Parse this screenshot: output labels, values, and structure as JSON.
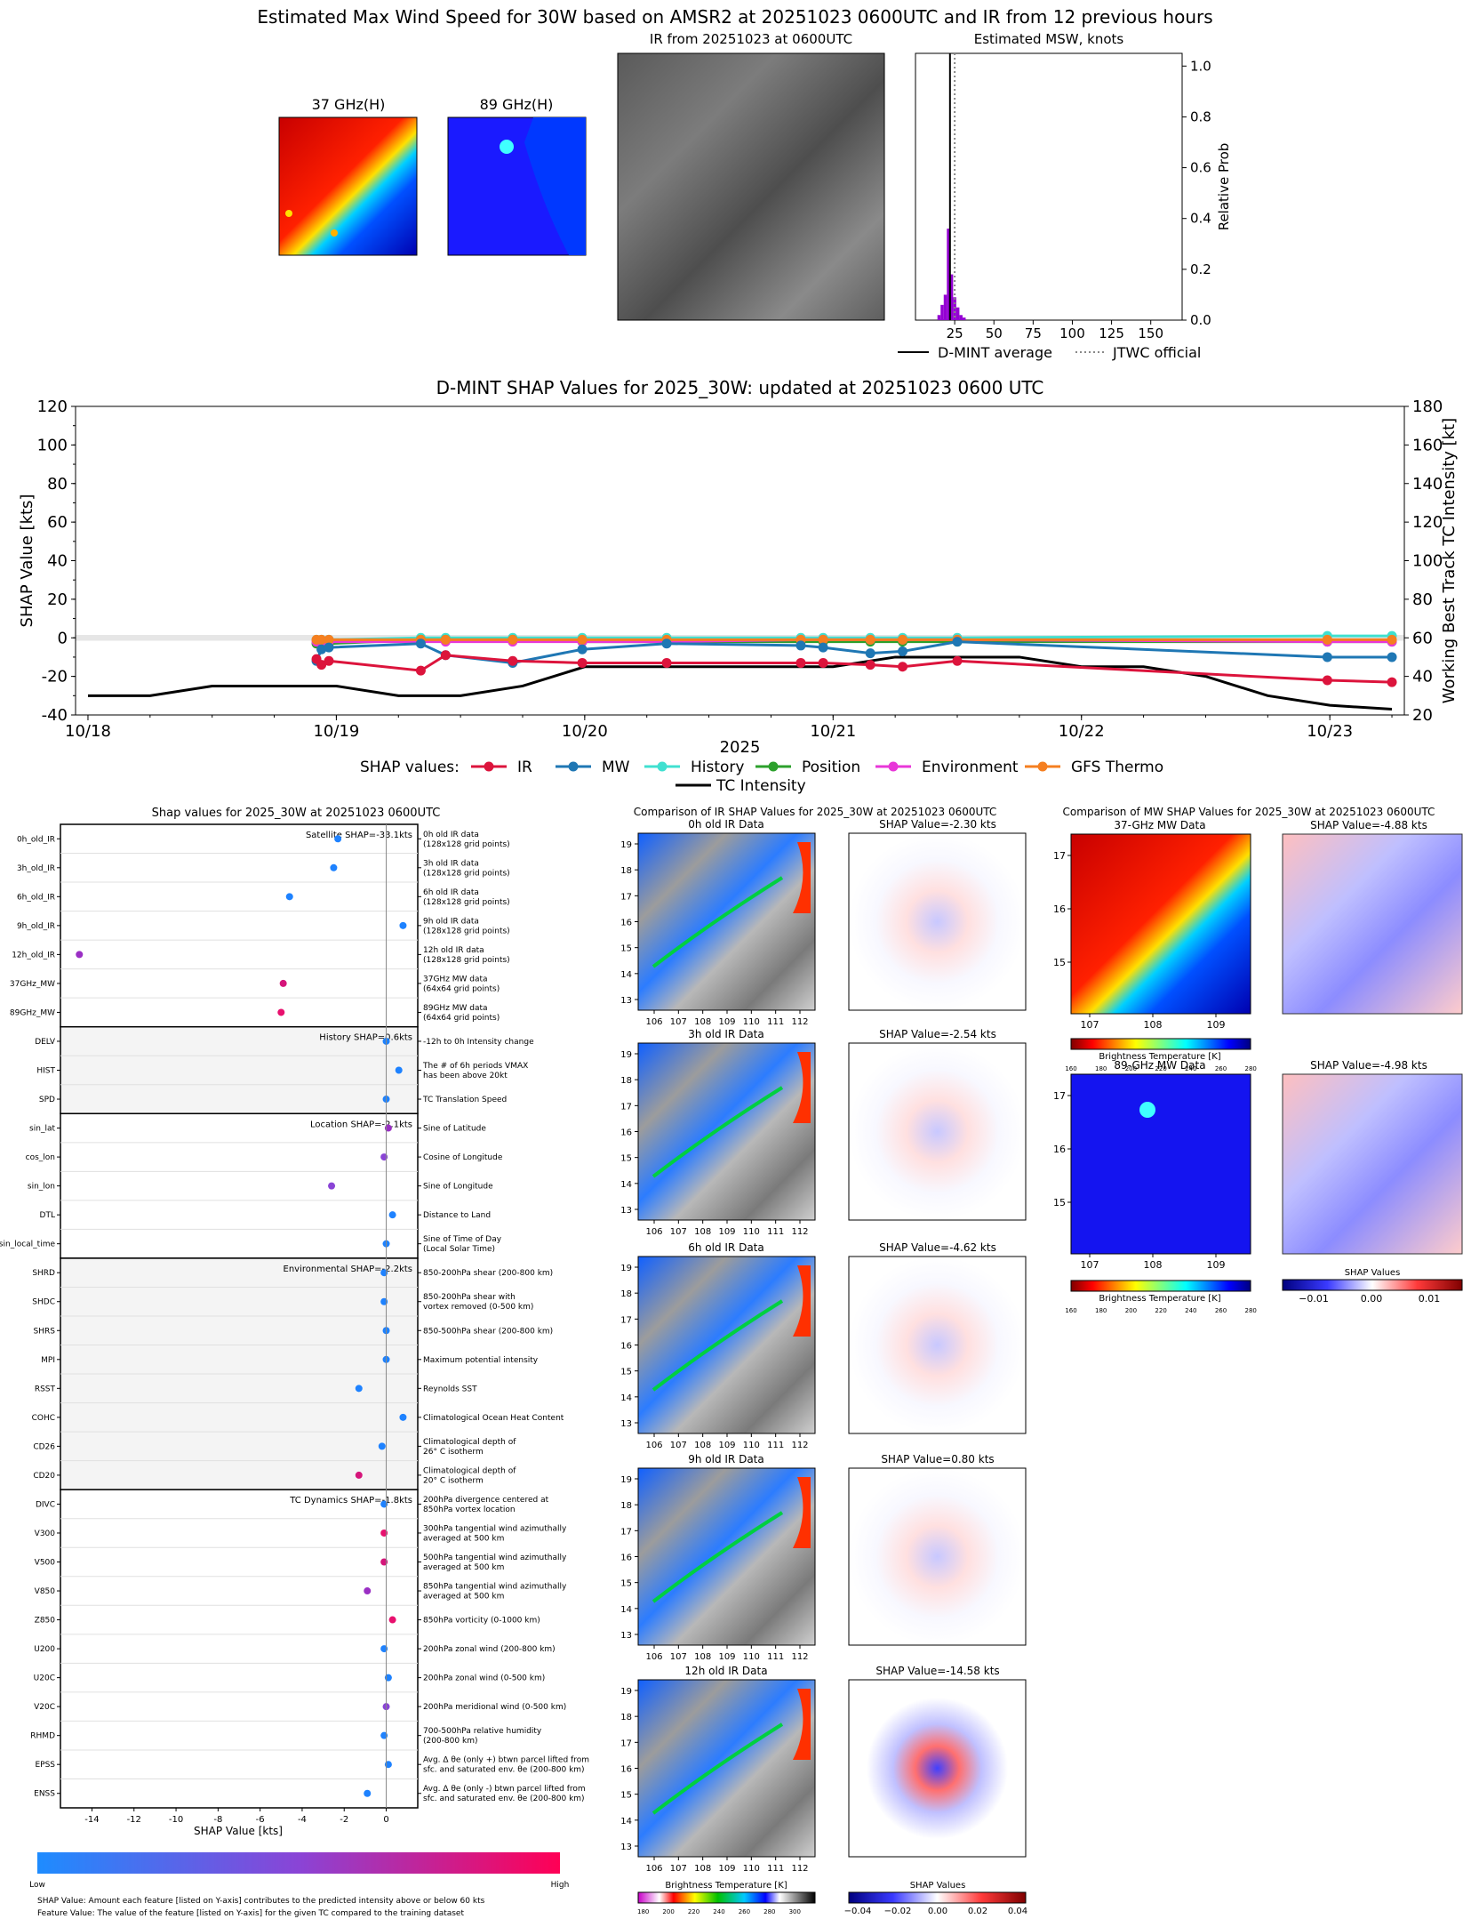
{
  "header": {
    "title": "Estimated Max Wind Speed for 30W based on AMSR2 at 20251023 0600UTC and IR from 12 previous hours",
    "panel_37": "37 GHz(H)",
    "panel_89": "89 GHz(H)",
    "panel_ir": "IR from 20251023 at 0600UTC"
  },
  "colors": {
    "ir": "#dc143c",
    "mw": "#1f77b4",
    "history": "#40e0d0",
    "position": "#2ca02c",
    "environment": "#e837d8",
    "gfs": "#f57f20",
    "intensity": "#000000",
    "hist_bar": "#9400d3"
  },
  "chart_data": [
    {
      "id": "msw",
      "type": "bar",
      "title": "Estimated MSW, knots",
      "ylabel": "Relative Prob",
      "xlim": [
        0,
        170
      ],
      "ylim": [
        0,
        1.05
      ],
      "xticks": [
        25,
        50,
        75,
        100,
        125,
        150
      ],
      "yticks": [
        "0.0",
        "0.2",
        "0.4",
        "0.6",
        "0.8",
        "1.0"
      ],
      "x": [
        15,
        17,
        19,
        21,
        23,
        25,
        27,
        29,
        31
      ],
      "values": [
        0.02,
        0.06,
        0.1,
        0.36,
        0.18,
        0.09,
        0.05,
        0.02,
        0.01
      ],
      "dmint_average": 22,
      "jtwc_official": 25,
      "legend": [
        "D-MINT average",
        "JTWC official"
      ]
    },
    {
      "id": "shap_timeseries",
      "type": "line",
      "title": "D-MINT SHAP Values for 2025_30W: updated at 20251023 0600 UTC",
      "xlabel": "2025",
      "ylabel": "SHAP Value [kts]",
      "ylabel_right": "Working Best Track TC Intensity [kt]",
      "ylim": [
        -40,
        120
      ],
      "ylim_right": [
        20,
        180
      ],
      "yticks": [
        -40,
        -20,
        0,
        20,
        40,
        60,
        80,
        100,
        120
      ],
      "yticks_right": [
        20,
        40,
        60,
        80,
        100,
        120,
        140,
        160,
        180
      ],
      "xlim": [
        -0.05,
        5.3
      ],
      "xtick_labels": [
        "10/18",
        "10/19",
        "10/20",
        "10/21",
        "10/22",
        "10/23"
      ],
      "legend_title": "SHAP values:",
      "legend_items": [
        "IR",
        "MW",
        "History",
        "Position",
        "Environment",
        "GFS Thermo",
        "TC Intensity"
      ],
      "x": [
        0.92,
        0.94,
        0.97,
        1.34,
        1.44,
        1.71,
        1.99,
        2.33,
        2.87,
        2.96,
        3.15,
        3.28,
        3.5,
        4.99,
        5.25
      ],
      "series": [
        {
          "name": "IR",
          "values": [
            -11,
            -14,
            -12,
            -17,
            -9,
            -12,
            -13,
            -13,
            -13,
            -13,
            -14,
            -15,
            -12,
            -22,
            -23
          ]
        },
        {
          "name": "MW",
          "values": [
            -12,
            -6,
            -5,
            -3,
            -9,
            -13,
            -6,
            -3,
            -4,
            -5,
            -8,
            -7,
            -2,
            -10,
            -10
          ]
        },
        {
          "name": "History",
          "values": [
            -1,
            -1,
            -1,
            0,
            0,
            0,
            0,
            0,
            0,
            0,
            0,
            0,
            0,
            1,
            1
          ]
        },
        {
          "name": "Position",
          "values": [
            -3,
            -3,
            -3,
            -1,
            -1,
            -1,
            -2,
            -2,
            -2,
            -2,
            -2,
            -2,
            -2,
            -2,
            -2
          ]
        },
        {
          "name": "Environment",
          "values": [
            -2,
            -2,
            -2,
            -2,
            -2,
            -2,
            -2,
            -2,
            -1,
            -1,
            -1,
            -1,
            -1,
            -2,
            -2
          ]
        },
        {
          "name": "GFS Thermo",
          "values": [
            -1,
            -1,
            -1,
            -1,
            -1,
            -1,
            -1,
            -1,
            -1,
            -1,
            -1,
            -1,
            -1,
            -1,
            -1
          ]
        }
      ],
      "intensity": {
        "name": "TC Intensity",
        "x": [
          0,
          0.25,
          0.5,
          0.75,
          1.0,
          1.25,
          1.5,
          1.75,
          2.0,
          2.25,
          2.5,
          2.75,
          3.0,
          3.25,
          3.5,
          3.75,
          4.0,
          4.25,
          4.5,
          4.75,
          5.0,
          5.25
        ],
        "values": [
          30,
          30,
          35,
          35,
          35,
          30,
          30,
          35,
          45,
          45,
          45,
          45,
          45,
          50,
          50,
          50,
          45,
          45,
          40,
          30,
          25,
          23
        ]
      }
    },
    {
      "id": "shap_features",
      "type": "scatter",
      "title": "Shap values for 2025_30W at 20251023 0600UTC",
      "xlabel": "SHAP Value [kts]",
      "xlim": [
        -15.5,
        1.5
      ],
      "xticks": [
        -14,
        -12,
        -10,
        -8,
        -6,
        -4,
        -2,
        0
      ],
      "colorbar_low": "Low",
      "colorbar_high": "High",
      "groups": [
        {
          "label": "Satellite SHAP=-33.1kts",
          "rows": [
            {
              "feature": "0h_old_IR",
              "desc": "0h old IR data\n(128x128 grid points)",
              "value": -2.3,
              "color": "#1e82ff"
            },
            {
              "feature": "3h_old_IR",
              "desc": "3h old IR data\n(128x128 grid points)",
              "value": -2.5,
              "color": "#1e82ff"
            },
            {
              "feature": "6h_old_IR",
              "desc": "6h old IR data\n(128x128 grid points)",
              "value": -4.6,
              "color": "#1e82ff"
            },
            {
              "feature": "9h_old_IR",
              "desc": "9h old IR data\n(128x128 grid points)",
              "value": 0.8,
              "color": "#1e82ff"
            },
            {
              "feature": "12h_old_IR",
              "desc": "12h old IR data\n(128x128 grid points)",
              "value": -14.6,
              "color": "#9a2fc4"
            },
            {
              "feature": "37GHz_MW",
              "desc": "37GHz MW data\n(64x64 grid points)",
              "value": -4.9,
              "color": "#d5157a"
            },
            {
              "feature": "89GHz_MW",
              "desc": "89GHz MW data\n(64x64 grid points)",
              "value": -5.0,
              "color": "#e8106e"
            }
          ]
        },
        {
          "label": "History SHAP=0.6kts",
          "rows": [
            {
              "feature": "DELV",
              "desc": "-12h to 0h Intensity change",
              "value": 0.0,
              "color": "#1e82ff"
            },
            {
              "feature": "HIST",
              "desc": "The # of 6h periods VMAX\nhas been above 20kt",
              "value": 0.6,
              "color": "#1e82ff"
            },
            {
              "feature": "SPD",
              "desc": "TC Translation Speed",
              "value": 0.0,
              "color": "#1e82ff"
            }
          ]
        },
        {
          "label": "Location SHAP=-2.1kts",
          "rows": [
            {
              "feature": "sin_lat",
              "desc": "Sine of Latitude",
              "value": 0.1,
              "color": "#9a2fc4"
            },
            {
              "feature": "cos_lon",
              "desc": "Cosine of Longitude",
              "value": -0.1,
              "color": "#8a44d6"
            },
            {
              "feature": "sin_lon",
              "desc": "Sine of Longitude",
              "value": -2.6,
              "color": "#8a44d6"
            },
            {
              "feature": "DTL",
              "desc": "Distance to Land",
              "value": 0.3,
              "color": "#1e82ff"
            },
            {
              "feature": "sin_local_time",
              "desc": "Sine of Time of Day\n(Local Solar Time)",
              "value": 0.0,
              "color": "#1e82ff"
            }
          ]
        },
        {
          "label": "Environmental SHAP=-2.2kts",
          "rows": [
            {
              "feature": "SHRD",
              "desc": "850-200hPa shear (200-800 km)",
              "value": -0.1,
              "color": "#1e82ff"
            },
            {
              "feature": "SHDC",
              "desc": "850-200hPa shear with\nvortex removed (0-500 km)",
              "value": -0.1,
              "color": "#1e82ff"
            },
            {
              "feature": "SHRS",
              "desc": "850-500hPa shear (200-800 km)",
              "value": 0.0,
              "color": "#1e82ff"
            },
            {
              "feature": "MPI",
              "desc": "Maximum potential intensity",
              "value": 0.0,
              "color": "#1e82ff"
            },
            {
              "feature": "RSST",
              "desc": "Reynolds SST",
              "value": -1.3,
              "color": "#1e82ff"
            },
            {
              "feature": "COHC",
              "desc": "Climatological Ocean Heat Content",
              "value": 0.8,
              "color": "#1e82ff"
            },
            {
              "feature": "CD26",
              "desc": "Climatological depth of\n26° C isotherm",
              "value": -0.2,
              "color": "#1e82ff"
            },
            {
              "feature": "CD20",
              "desc": "Climatological depth of\n20° C isotherm",
              "value": -1.3,
              "color": "#d5157a"
            }
          ]
        },
        {
          "label": "TC Dynamics SHAP=-1.8kts",
          "rows": [
            {
              "feature": "DIVC",
              "desc": "200hPa divergence centered at\n850hPa vortex location",
              "value": -0.1,
              "color": "#1e82ff"
            },
            {
              "feature": "V300",
              "desc": "300hPa tangential wind azimuthally\naveraged at 500 km",
              "value": -0.1,
              "color": "#e8106e"
            },
            {
              "feature": "V500",
              "desc": "500hPa tangential wind azimuthally\naveraged at 500 km",
              "value": -0.1,
              "color": "#d5157a"
            },
            {
              "feature": "V850",
              "desc": "850hPa tangential wind azimuthally\naveraged at 500 km",
              "value": -0.9,
              "color": "#9a2fc4"
            },
            {
              "feature": "Z850",
              "desc": "850hPa vorticity (0-1000 km)",
              "value": 0.3,
              "color": "#e8106e"
            },
            {
              "feature": "U200",
              "desc": "200hPa zonal wind (200-800 km)",
              "value": -0.1,
              "color": "#1e82ff"
            },
            {
              "feature": "U20C",
              "desc": "200hPa zonal wind (0-500 km)",
              "value": 0.1,
              "color": "#1e82ff"
            },
            {
              "feature": "V20C",
              "desc": "200hPa meridional wind (0-500 km)",
              "value": 0.0,
              "color": "#8a44d6"
            },
            {
              "feature": "RHMD",
              "desc": "700-500hPa relative humidity\n(200-800 km)",
              "value": -0.1,
              "color": "#1e82ff"
            },
            {
              "feature": "EPSS",
              "desc": "Avg. Δ θe (only +) btwn parcel lifted from\nsfc. and saturated env. θe (200-800 km)",
              "value": 0.1,
              "color": "#1e82ff"
            },
            {
              "feature": "ENSS",
              "desc": "Avg. Δ θe (only -) btwn parcel lifted from\nsfc. and saturated env. θe (200-800 km)",
              "value": -0.9,
              "color": "#1e82ff"
            }
          ]
        }
      ]
    }
  ],
  "footnotes": {
    "line1": "SHAP Value: Amount each feature [listed on Y-axis] contributes to the predicted intensity above or below 60 kts",
    "line2": "Feature Value: The value of the feature [listed on Y-axis] for the given TC compared to the training dataset"
  },
  "ir_compare": {
    "title": "Comparison of IR SHAP Values for 2025_30W at 20251023 0600UTC",
    "panels": [
      {
        "label": "0h old IR Data",
        "shap": "SHAP Value=-2.30 kts"
      },
      {
        "label": "3h old IR Data",
        "shap": "SHAP Value=-2.54 kts"
      },
      {
        "label": "6h old IR Data",
        "shap": "SHAP Value=-4.62 kts"
      },
      {
        "label": "9h old IR Data",
        "shap": "SHAP Value=0.80 kts"
      },
      {
        "label": "12h old IR Data",
        "shap": "SHAP Value=-14.58 kts"
      }
    ],
    "xticks": [
      "106",
      "107",
      "108",
      "109",
      "110",
      "111",
      "112"
    ],
    "yticks": [
      "13",
      "14",
      "15",
      "16",
      "17",
      "18",
      "19"
    ],
    "cbar_bt_label": "Brightness Temperature [K]",
    "cbar_bt_ticks": [
      "180",
      "200",
      "220",
      "240",
      "260",
      "280",
      "300"
    ],
    "cbar_shap_label": "SHAP Values",
    "cbar_shap_ticks": [
      "−0.04",
      "−0.02",
      "0.00",
      "0.02",
      "0.04"
    ]
  },
  "mw_compare": {
    "title": "Comparison of MW SHAP Values for 2025_30W at 20251023 0600UTC",
    "panels": [
      {
        "label": "37-GHz MW Data",
        "shap": "SHAP Value=-4.88 kts"
      },
      {
        "label": "89-GHz MW Data",
        "shap": "SHAP Value=-4.98 kts"
      }
    ],
    "xticks": [
      "107",
      "108",
      "109"
    ],
    "yticks": [
      "15",
      "16",
      "17"
    ],
    "cbar_bt_label": "Brightness Temperature [K]",
    "cbar_bt_ticks": [
      "160",
      "180",
      "200",
      "220",
      "240",
      "260",
      "280"
    ],
    "cbar_shap_label": "SHAP Values",
    "cbar_shap_ticks": [
      "−0.01",
      "0.00",
      "0.01"
    ]
  }
}
